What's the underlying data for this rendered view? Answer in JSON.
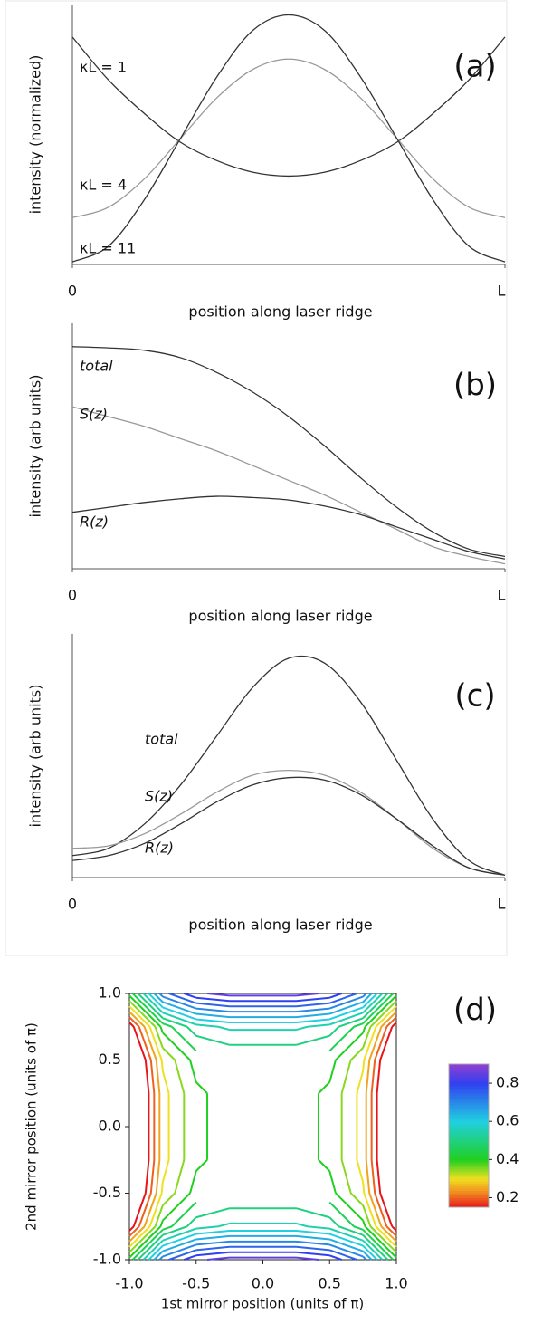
{
  "chart_data": [
    {
      "type": "line",
      "panel_label": "(a)",
      "xlabel": "position along laser ridge",
      "ylabel": "intensity (normalized)",
      "x": [
        0,
        0.0833,
        0.1667,
        0.25,
        0.3333,
        0.4167,
        0.5,
        0.5833,
        0.6667,
        0.75,
        0.8333,
        0.9167,
        1
      ],
      "xlim": [
        0,
        1
      ],
      "xticks": [
        {
          "value": 0,
          "label": "0"
        },
        {
          "value": 1,
          "label": "L"
        }
      ],
      "ylim": [
        0,
        1
      ],
      "yticks": [],
      "series": [
        {
          "name": "κL = 1",
          "color": "#333333",
          "values": [
            0.875,
            0.71,
            0.58,
            0.47,
            0.4,
            0.355,
            0.34,
            0.355,
            0.4,
            0.47,
            0.58,
            0.71,
            0.875
          ]
        },
        {
          "name": "κL = 4",
          "color": "#999999",
          "values": [
            0.18,
            0.22,
            0.33,
            0.485,
            0.64,
            0.75,
            0.79,
            0.75,
            0.64,
            0.485,
            0.33,
            0.22,
            0.18
          ]
        },
        {
          "name": "κL = 11",
          "color": "#333333",
          "values": [
            0.01,
            0.07,
            0.25,
            0.485,
            0.72,
            0.9,
            0.96,
            0.9,
            0.72,
            0.485,
            0.25,
            0.07,
            0.01
          ]
        }
      ]
    },
    {
      "type": "line",
      "panel_label": "(b)",
      "xlabel": "position along laser ridge",
      "ylabel": "intensity (arb units)",
      "x": [
        0,
        0.0833,
        0.1667,
        0.25,
        0.3333,
        0.4167,
        0.5,
        0.5833,
        0.6667,
        0.75,
        0.8333,
        0.9167,
        1
      ],
      "xlim": [
        0,
        1
      ],
      "xticks": [
        {
          "value": 0,
          "label": "0"
        },
        {
          "value": 1,
          "label": "L"
        }
      ],
      "ylim": [
        0,
        1
      ],
      "yticks": [],
      "series": [
        {
          "name": "total",
          "color": "#333333",
          "values": [
            0.905,
            0.9,
            0.89,
            0.86,
            0.8,
            0.72,
            0.62,
            0.5,
            0.37,
            0.25,
            0.15,
            0.08,
            0.05
          ]
        },
        {
          "name": "S(z)",
          "color": "#999999",
          "values": [
            0.66,
            0.62,
            0.58,
            0.53,
            0.48,
            0.42,
            0.36,
            0.3,
            0.23,
            0.16,
            0.09,
            0.05,
            0.02
          ]
        },
        {
          "name": "R(z)",
          "color": "#333333",
          "values": [
            0.23,
            0.25,
            0.27,
            0.285,
            0.295,
            0.29,
            0.28,
            0.255,
            0.22,
            0.17,
            0.12,
            0.07,
            0.04
          ]
        }
      ]
    },
    {
      "type": "line",
      "panel_label": "(c)",
      "xlabel": "position along laser ridge",
      "ylabel": "intensity (arb units)",
      "x": [
        0,
        0.0833,
        0.1667,
        0.25,
        0.3333,
        0.4167,
        0.5,
        0.5833,
        0.6667,
        0.75,
        0.8333,
        0.9167,
        1
      ],
      "xlim": [
        0,
        1
      ],
      "xticks": [
        {
          "value": 0,
          "label": "0"
        },
        {
          "value": 1,
          "label": "L"
        }
      ],
      "ylim": [
        0,
        1
      ],
      "yticks": [],
      "series": [
        {
          "name": "total",
          "color": "#333333",
          "values": [
            0.09,
            0.12,
            0.22,
            0.38,
            0.58,
            0.78,
            0.9,
            0.88,
            0.72,
            0.48,
            0.24,
            0.07,
            0.01
          ]
        },
        {
          "name": "S(z)",
          "color": "#999999",
          "values": [
            0.12,
            0.13,
            0.18,
            0.26,
            0.35,
            0.42,
            0.44,
            0.42,
            0.35,
            0.24,
            0.12,
            0.04,
            0.01
          ]
        },
        {
          "name": "R(z)",
          "color": "#333333",
          "values": [
            0.07,
            0.09,
            0.14,
            0.22,
            0.31,
            0.38,
            0.41,
            0.4,
            0.34,
            0.24,
            0.13,
            0.04,
            0.01
          ]
        }
      ]
    },
    {
      "type": "contour",
      "panel_label": "(d)",
      "xlabel": "1st mirror position (units of  π)",
      "ylabel": "2nd mirror position (units of  π)",
      "x": [
        -1,
        -0.75,
        -0.5,
        -0.25,
        0,
        0.25,
        0.5,
        0.75,
        1
      ],
      "y": [
        -1,
        -0.75,
        -0.5,
        -0.25,
        0,
        0.25,
        0.5,
        0.75,
        1
      ],
      "z": [
        [
          0.42,
          0.73,
          0.84,
          0.87,
          0.87,
          0.87,
          0.84,
          0.73,
          0.42
        ],
        [
          0.11,
          0.42,
          0.53,
          0.56,
          0.56,
          0.56,
          0.53,
          0.42,
          0.11
        ],
        [
          0,
          0.31,
          0.42,
          0.45,
          0.45,
          0.45,
          0.42,
          0.31,
          0
        ],
        [
          -0.03,
          0.28,
          0.39,
          0.42,
          0.42,
          0.42,
          0.39,
          0.28,
          -0.03
        ],
        [
          -0.03,
          0.28,
          0.39,
          0.42,
          0.42,
          0.42,
          0.39,
          0.28,
          -0.03
        ],
        [
          -0.03,
          0.28,
          0.39,
          0.42,
          0.42,
          0.42,
          0.39,
          0.28,
          -0.03
        ],
        [
          0,
          0.31,
          0.42,
          0.45,
          0.45,
          0.45,
          0.42,
          0.31,
          0
        ],
        [
          0.11,
          0.42,
          0.53,
          0.56,
          0.56,
          0.56,
          0.53,
          0.42,
          0.11
        ],
        [
          0.42,
          0.73,
          0.84,
          0.87,
          0.87,
          0.87,
          0.84,
          0.73,
          0.42
        ]
      ],
      "xlim": [
        -1,
        1
      ],
      "ylim": [
        -1,
        1
      ],
      "xticks": [
        {
          "value": -1,
          "label": "-1.0"
        },
        {
          "value": -0.5,
          "label": "-0.5"
        },
        {
          "value": 0,
          "label": "0.0"
        },
        {
          "value": 0.5,
          "label": "0.5"
        },
        {
          "value": 1,
          "label": "1.0"
        }
      ],
      "yticks": [
        {
          "value": -1,
          "label": "-1.0"
        },
        {
          "value": -0.5,
          "label": "-0.5"
        },
        {
          "value": 0,
          "label": "0.0"
        },
        {
          "value": 0.5,
          "label": "0.5"
        },
        {
          "value": 1,
          "label": "1.0"
        }
      ],
      "levels": [
        0.15,
        0.2,
        0.25,
        0.3,
        0.35,
        0.4,
        0.45,
        0.5,
        0.55,
        0.6,
        0.65,
        0.7,
        0.75,
        0.8,
        0.85
      ],
      "clim": [
        0.15,
        0.9
      ],
      "cticks": [
        0.2,
        0.4,
        0.6,
        0.8
      ],
      "colorscale": [
        {
          "value": 0.15,
          "color": "#e8141c"
        },
        {
          "value": 0.22,
          "color": "#f08020"
        },
        {
          "value": 0.3,
          "color": "#f0e020"
        },
        {
          "value": 0.4,
          "color": "#20d020"
        },
        {
          "value": 0.6,
          "color": "#20d0e0"
        },
        {
          "value": 0.8,
          "color": "#3040f0"
        },
        {
          "value": 0.9,
          "color": "#9040d0"
        }
      ]
    }
  ]
}
